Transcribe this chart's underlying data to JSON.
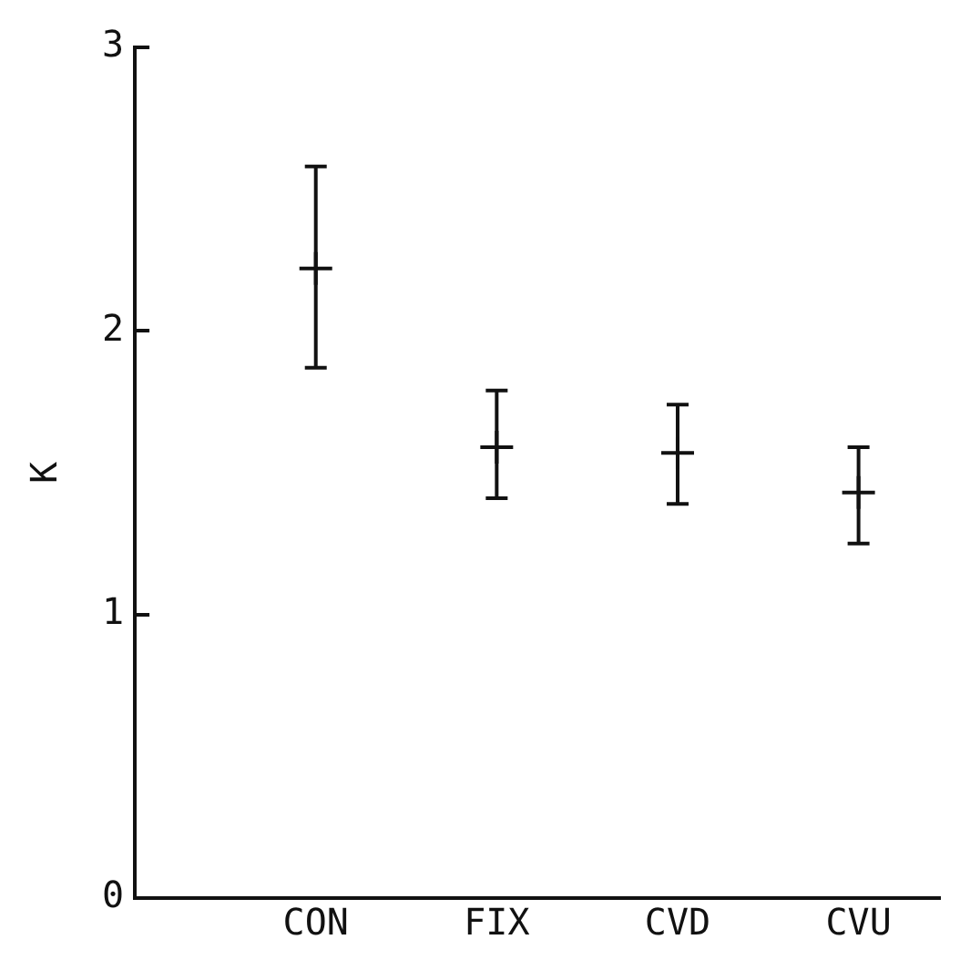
{
  "chart_data": {
    "type": "scatter",
    "ylabel": "K",
    "categories": [
      "CON",
      "FIX",
      "CVD",
      "CVU"
    ],
    "values": [
      2.22,
      1.59,
      1.57,
      1.43
    ],
    "errors": [
      [
        1.87,
        2.58
      ],
      [
        1.41,
        1.79
      ],
      [
        1.39,
        1.74
      ],
      [
        1.25,
        1.59
      ]
    ],
    "color": "#111111",
    "ylim": [
      0,
      3
    ],
    "yticks": [
      0,
      1,
      2,
      3
    ],
    "grid": false,
    "legend": false,
    "marker": "cross"
  }
}
